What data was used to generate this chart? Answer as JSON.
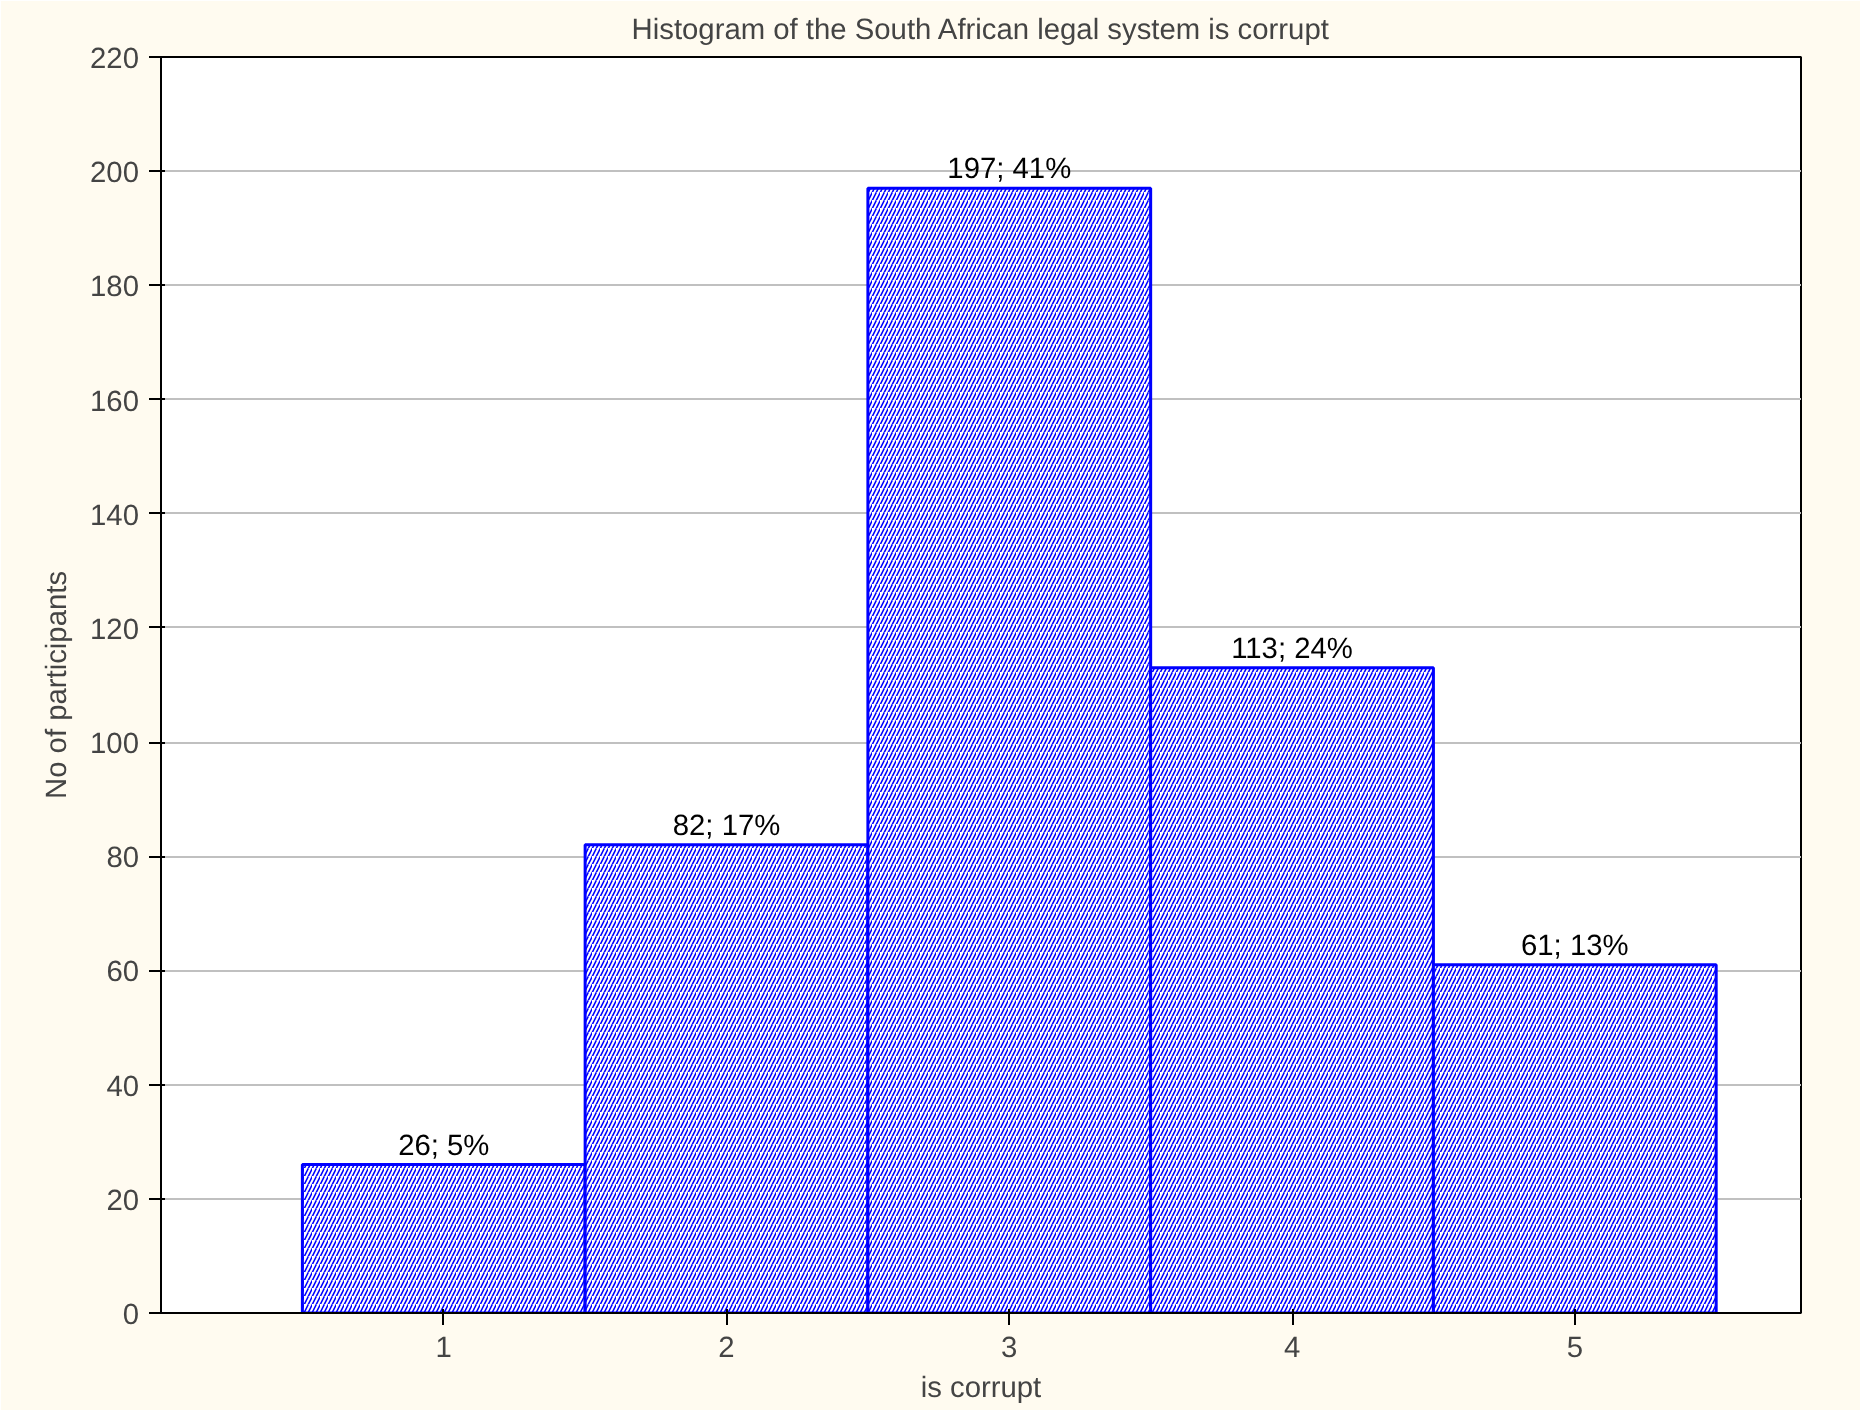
{
  "chart_data": {
    "type": "histogram",
    "title": "Histogram of the South African legal system is corrupt",
    "xlabel": "is corrupt",
    "ylabel": "No of participants",
    "bins": [
      0.5,
      1.5,
      2.5,
      3.5,
      4.5,
      5.5
    ],
    "values": [
      26,
      82,
      197,
      113,
      61
    ],
    "value_labels": [
      "26; 5%",
      "82; 17%",
      "197; 41%",
      "113; 24%",
      "61; 13%"
    ],
    "color": "#0000ff",
    "xlim": [
      0,
      5.8
    ],
    "xticks": [
      1,
      2,
      3,
      4,
      5
    ],
    "ylim": [
      0,
      220
    ],
    "yticks": [
      0,
      20,
      40,
      60,
      80,
      100,
      120,
      140,
      160,
      180,
      200,
      220
    ],
    "grid": "y"
  }
}
